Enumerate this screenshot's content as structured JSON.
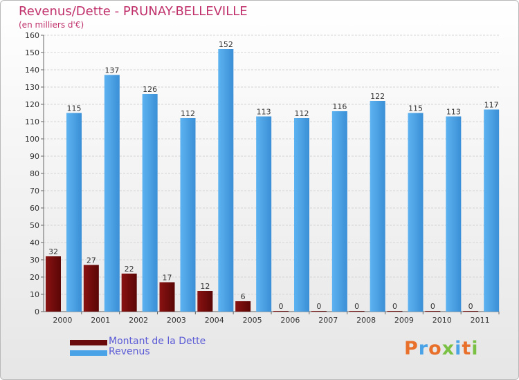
{
  "chart_data": {
    "type": "bar",
    "title": "Revenus/Dette - PRUNAY-BELLEVILLE",
    "subtitle": "(en milliers d'€)",
    "categories": [
      "2000",
      "2001",
      "2002",
      "2003",
      "2004",
      "2005",
      "2006",
      "2007",
      "2008",
      "2009",
      "2010",
      "2011"
    ],
    "series": [
      {
        "name": "Montant de la Dette",
        "color": "#6b0a0a",
        "values": [
          32,
          27,
          22,
          17,
          12,
          6,
          0,
          0,
          0,
          0,
          0,
          0
        ]
      },
      {
        "name": "Revenus",
        "color": "#4aa3e6",
        "values": [
          115,
          137,
          126,
          112,
          152,
          113,
          112,
          116,
          122,
          115,
          113,
          117
        ]
      }
    ],
    "ylim": [
      0,
      160
    ],
    "yticks": [
      0,
      10,
      20,
      30,
      40,
      50,
      60,
      70,
      80,
      90,
      100,
      110,
      120,
      130,
      140,
      150,
      160
    ],
    "grid": true,
    "legend": "bottom-left"
  },
  "branding": {
    "logo_text": "Proxiti",
    "logo_colors": [
      "#e8702a",
      "#4aa3e6",
      "#e8702a",
      "#7ac143",
      "#4aa3e6",
      "#e8702a",
      "#7ac143"
    ]
  }
}
